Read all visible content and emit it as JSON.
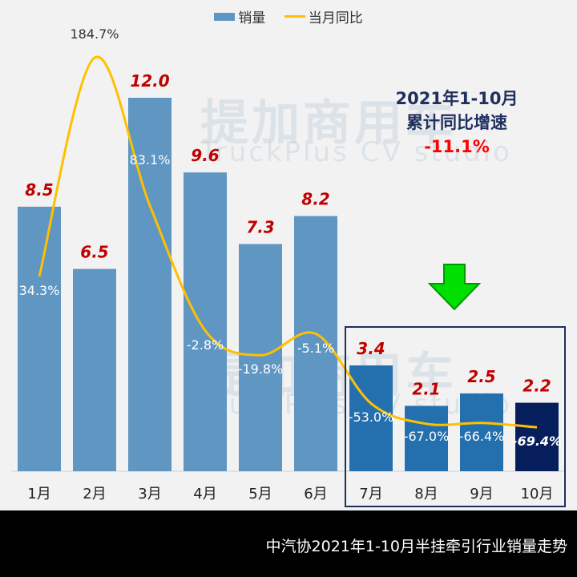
{
  "legend": {
    "bar": "销量",
    "line": "当月同比"
  },
  "note": {
    "line1": "2021年1-10月",
    "line2": "累计同比增速",
    "value": "-11.1%"
  },
  "watermark": {
    "cn": "提加商用车",
    "en": "TruckPlus CV studio"
  },
  "footer": "中汽协2021年1-10月半挂牵引行业销量走势",
  "colors": {
    "bar": "#5f96c2",
    "bar_recent": "#2470ae",
    "bar_last": "#061f5c",
    "line": "#ffc000",
    "value_label": "#c00000",
    "arrow": "#00e000"
  },
  "chart_data": {
    "type": "bar",
    "categories": [
      "1月",
      "2月",
      "3月",
      "4月",
      "5月",
      "6月",
      "7月",
      "8月",
      "9月",
      "10月"
    ],
    "series": [
      {
        "name": "销量",
        "type": "bar",
        "values": [
          8.5,
          6.5,
          12.0,
          9.6,
          7.3,
          8.2,
          3.4,
          2.1,
          2.5,
          2.2
        ],
        "labels": [
          "8.5",
          "6.5",
          "12.0",
          "9.6",
          "7.3",
          "8.2",
          "3.4",
          "2.1",
          "2.5",
          "2.2"
        ]
      },
      {
        "name": "当月同比",
        "type": "line",
        "values": [
          34.3,
          184.7,
          83.1,
          -2.8,
          -19.8,
          -5.1,
          -53.0,
          -67.0,
          -66.4,
          -69.4
        ],
        "labels": [
          "34.3%",
          "184.7%",
          "83.1%",
          "-2.8%",
          "-19.8%",
          "-5.1%",
          "-53.0%",
          "-67.0%",
          "-66.4%",
          "-69.4%"
        ]
      }
    ],
    "ylim": [
      0,
      12
    ],
    "legend": "top"
  }
}
